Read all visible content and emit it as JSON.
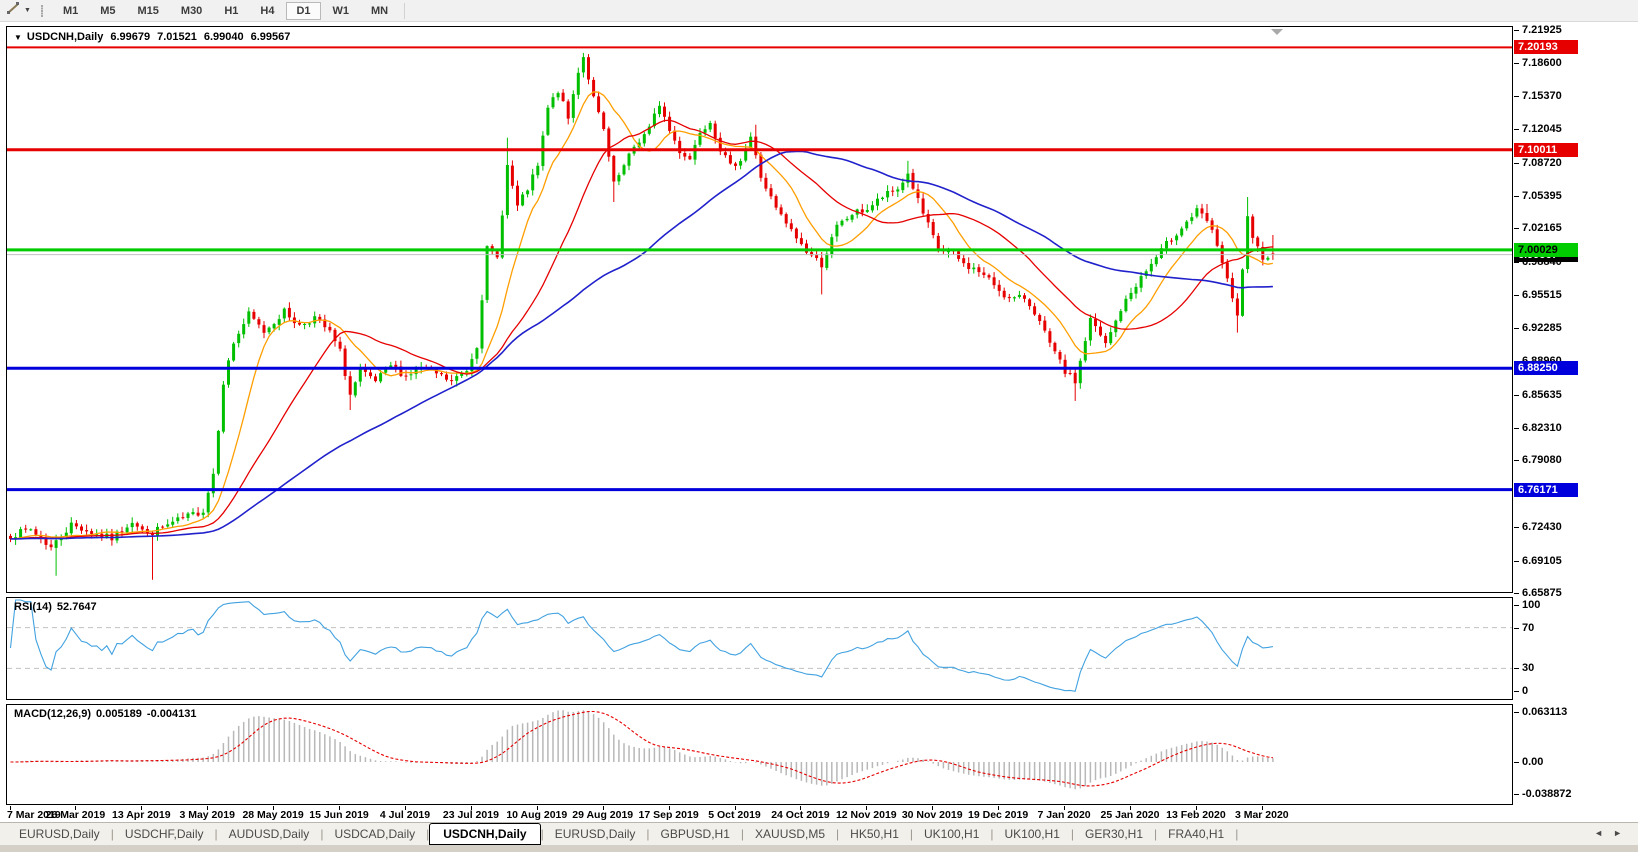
{
  "toolbar": {
    "dropdown_caret": "▼",
    "timeframes": [
      "M1",
      "M5",
      "M15",
      "M30",
      "H1",
      "H4",
      "D1",
      "W1",
      "MN"
    ],
    "active_timeframe": "D1"
  },
  "header": {
    "collapse_icon": "▼",
    "symbol": "USDCNH,Daily",
    "open": "6.99679",
    "high": "7.01521",
    "low": "6.99040",
    "close": "6.99567"
  },
  "rsi_panel": {
    "label": "RSI(14)",
    "value": "52.7647",
    "levels": [
      100,
      70,
      30,
      0
    ],
    "dashed_levels": [
      70,
      30
    ],
    "line_color": "#42a2e0",
    "level_color": "#c0c0c0"
  },
  "macd_panel": {
    "label": "MACD(12,26,9)",
    "value_main": "0.005189",
    "value_signal": "-0.004131",
    "levels": [
      {
        "label": "0.063113",
        "value": 0.063113
      },
      {
        "label": "0.00",
        "value": 0
      },
      {
        "label": "-0.038872",
        "value": -0.038872
      }
    ],
    "hist_color": "#b8b8b8",
    "signal_color": "#e60000"
  },
  "x_axis": {
    "dates": [
      "7 Mar 2019",
      "26 Mar 2019",
      "13 Apr 2019",
      "3 May 2019",
      "28 May 2019",
      "15 Jun 2019",
      "4 Jul 2019",
      "23 Jul 2019",
      "10 Aug 2019",
      "29 Aug 2019",
      "17 Sep 2019",
      "5 Oct 2019",
      "24 Oct 2019",
      "12 Nov 2019",
      "30 Nov 2019",
      "19 Dec 2019",
      "7 Jan 2020",
      "25 Jan 2020",
      "13 Feb 2020",
      "3 Mar 2020"
    ]
  },
  "tabs": {
    "items": [
      "EURUSD,Daily",
      "USDCHF,Daily",
      "AUDUSD,Daily",
      "USDCAD,Daily",
      "USDCNH,Daily",
      "EURUSD,Daily",
      "GBPUSD,H1",
      "XAUUSD,M5",
      "HK50,H1",
      "UK100,H1",
      "UK100,H1",
      "GER30,H1",
      "FRA40,H1"
    ],
    "active_index": 4,
    "scroll_left": "◄",
    "scroll_right": "►"
  },
  "chart_data": {
    "type": "candlestick",
    "title": "USDCNH,Daily",
    "symbol": "USDCNH",
    "timeframe": "Daily",
    "ylim": [
      6.6588,
      7.2223
    ],
    "y_ticks": [
      "7.21925",
      "7.18600",
      "7.15370",
      "7.12045",
      "7.08720",
      "7.05395",
      "7.02165",
      "6.98840",
      "6.95515",
      "6.92285",
      "6.88960",
      "6.85635",
      "6.82310",
      "6.79080",
      "6.75755",
      "6.72430",
      "6.69105",
      "6.65875"
    ],
    "hlines": [
      {
        "value": 7.20193,
        "label": "7.20193",
        "color": "#e60000",
        "width": 2,
        "text_color": "#ffffff"
      },
      {
        "value": 7.10011,
        "label": "7.10011",
        "color": "#e60000",
        "width": 3,
        "text_color": "#ffffff"
      },
      {
        "value": 7.00029,
        "label": "7.00029",
        "color": "#00cc00",
        "width": 3,
        "text_color": "#000000"
      },
      {
        "value": 6.8825,
        "label": "6.88250",
        "color": "#0000dc",
        "width": 3,
        "text_color": "#ffffff"
      },
      {
        "value": 6.76171,
        "label": "6.76171",
        "color": "#0000dc",
        "width": 3,
        "text_color": "#ffffff"
      }
    ],
    "current_price": {
      "value": 6.99567,
      "label": "6.99567",
      "line_color": "#c0c0c0",
      "badge_bg": "#000000",
      "badge_fg": "#ffffff"
    },
    "candle_count": 250,
    "bull_color": "#00bf00",
    "bear_color": "#e60000",
    "noise": 0.0035,
    "seed": 7,
    "close_anchors": [
      [
        0,
        6.716
      ],
      [
        4,
        6.722
      ],
      [
        8,
        6.704
      ],
      [
        12,
        6.727
      ],
      [
        16,
        6.719
      ],
      [
        20,
        6.713
      ],
      [
        24,
        6.731
      ],
      [
        27,
        6.717
      ],
      [
        30,
        6.724
      ],
      [
        34,
        6.733
      ],
      [
        38,
        6.741
      ],
      [
        40,
        6.778
      ],
      [
        42,
        6.869
      ],
      [
        44,
        6.908
      ],
      [
        47,
        6.936
      ],
      [
        50,
        6.919
      ],
      [
        54,
        6.939
      ],
      [
        57,
        6.925
      ],
      [
        60,
        6.933
      ],
      [
        63,
        6.918
      ],
      [
        65,
        6.899
      ],
      [
        67,
        6.856
      ],
      [
        69,
        6.879
      ],
      [
        72,
        6.869
      ],
      [
        75,
        6.885
      ],
      [
        78,
        6.875
      ],
      [
        81,
        6.883
      ],
      [
        84,
        6.877
      ],
      [
        87,
        6.869
      ],
      [
        90,
        6.881
      ],
      [
        92,
        6.906
      ],
      [
        94,
        7.001
      ],
      [
        96,
        6.992
      ],
      [
        98,
        7.084
      ],
      [
        100,
        7.043
      ],
      [
        102,
        7.061
      ],
      [
        104,
        7.083
      ],
      [
        106,
        7.141
      ],
      [
        108,
        7.159
      ],
      [
        110,
        7.131
      ],
      [
        112,
        7.179
      ],
      [
        113,
        7.193
      ],
      [
        115,
        7.151
      ],
      [
        117,
        7.119
      ],
      [
        119,
        7.065
      ],
      [
        121,
        7.083
      ],
      [
        123,
        7.103
      ],
      [
        126,
        7.121
      ],
      [
        128,
        7.146
      ],
      [
        130,
        7.119
      ],
      [
        132,
        7.099
      ],
      [
        134,
        7.091
      ],
      [
        136,
        7.119
      ],
      [
        138,
        7.129
      ],
      [
        140,
        7.101
      ],
      [
        142,
        7.083
      ],
      [
        144,
        7.091
      ],
      [
        146,
        7.113
      ],
      [
        148,
        7.073
      ],
      [
        151,
        7.041
      ],
      [
        154,
        7.019
      ],
      [
        157,
        6.999
      ],
      [
        160,
        6.986
      ],
      [
        163,
        7.023
      ],
      [
        166,
        7.036
      ],
      [
        169,
        7.041
      ],
      [
        172,
        7.053
      ],
      [
        175,
        7.061
      ],
      [
        177,
        7.076
      ],
      [
        180,
        7.036
      ],
      [
        183,
        7.001
      ],
      [
        186,
        6.996
      ],
      [
        188,
        6.986
      ],
      [
        191,
        6.979
      ],
      [
        194,
        6.966
      ],
      [
        197,
        6.951
      ],
      [
        200,
        6.953
      ],
      [
        202,
        6.939
      ],
      [
        205,
        6.906
      ],
      [
        208,
        6.879
      ],
      [
        210,
        6.869
      ],
      [
        213,
        6.931
      ],
      [
        216,
        6.906
      ],
      [
        219,
        6.941
      ],
      [
        222,
        6.966
      ],
      [
        225,
        6.986
      ],
      [
        228,
        7.006
      ],
      [
        231,
        7.023
      ],
      [
        234,
        7.039
      ],
      [
        236,
        7.029
      ],
      [
        238,
        7.006
      ],
      [
        240,
        6.969
      ],
      [
        242,
        6.933
      ],
      [
        244,
        7.031
      ],
      [
        245,
        7.009
      ],
      [
        247,
        6.994
      ],
      [
        249,
        6.99567
      ]
    ],
    "wick_overrides": {
      "9": {
        "low": 6.676
      },
      "28": {
        "low": 6.672
      },
      "67": {
        "low": 6.841
      },
      "98": {
        "high": 7.112
      },
      "113": {
        "high": 7.1965
      },
      "119": {
        "low": 7.048
      },
      "147": {
        "high": 7.125
      },
      "160": {
        "low": 6.956
      },
      "177": {
        "high": 7.089
      },
      "210": {
        "low": 6.85
      },
      "236": {
        "high": 7.046
      },
      "242": {
        "low": 6.918
      },
      "244": {
        "high": 7.053
      }
    },
    "last_ohlc": [
      6.99679,
      7.01521,
      6.9904,
      6.99567
    ],
    "moving_averages": [
      {
        "period": 10,
        "color": "#ff9e00",
        "width": 1.3
      },
      {
        "period": 25,
        "color": "#e60000",
        "width": 1.3
      },
      {
        "period": 60,
        "color": "#2121cc",
        "width": 1.6
      }
    ],
    "rsi": {
      "period": 14,
      "display_value": "52.7647"
    },
    "macd": {
      "fast": 12,
      "slow": 26,
      "signal": 9
    }
  }
}
